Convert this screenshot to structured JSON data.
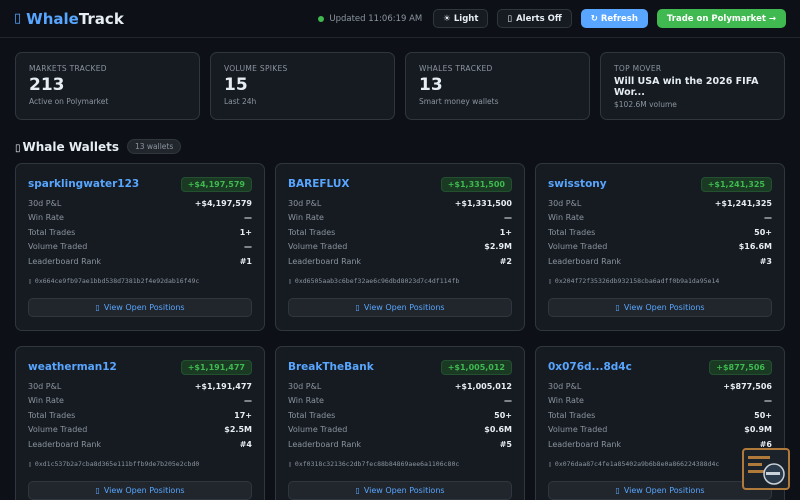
{
  "header": {
    "logo_icon": "tofu-box",
    "logo_whale": "Whale",
    "logo_track": "Track",
    "updated": "Updated 11:06:19 AM",
    "light_btn": "☀ Light",
    "alerts_btn": "Alerts Off",
    "refresh_btn": "↻ Refresh",
    "trade_btn": "Trade on Polymarket →"
  },
  "stats": [
    {
      "label": "MARKETS TRACKED",
      "value": "213",
      "sub": "Active on Polymarket"
    },
    {
      "label": "VOLUME SPIKES",
      "value": "15",
      "sub": "Last 24h"
    },
    {
      "label": "WHALES TRACKED",
      "value": "13",
      "sub": "Smart money wallets"
    },
    {
      "label": "TOP MOVER",
      "title": "Will USA win the 2026 FIFA Wor...",
      "sub": "$102.6M volume"
    }
  ],
  "section": {
    "title": "Whale Wallets",
    "count": "13 wallets"
  },
  "labels": {
    "pnl": "30d P&L",
    "win": "Win Rate",
    "trades": "Total Trades",
    "volume": "Volume Traded",
    "rank": "Leaderboard Rank",
    "positions": "View Open Positions"
  },
  "wallets": [
    {
      "name": "sparklingwater123",
      "badge": "+$4,197,579",
      "pnl": "+$4,197,579",
      "win": "—",
      "trades": "1+",
      "volume": "—",
      "rank": "#1",
      "addr": "0x664ce9fb97ae1bbd538d7381b2f4e92dab16f49c"
    },
    {
      "name": "BAREFLUX",
      "badge": "+$1,331,500",
      "pnl": "+$1,331,500",
      "win": "—",
      "trades": "1+",
      "volume": "$2.9M",
      "rank": "#2",
      "addr": "0xd6505aab3c6bef32ae6c96dbd8023d7c4df114fb"
    },
    {
      "name": "swisstony",
      "badge": "+$1,241,325",
      "pnl": "+$1,241,325",
      "win": "—",
      "trades": "50+",
      "volume": "$16.6M",
      "rank": "#3",
      "addr": "0x204f72f35326db932158cba6adff0b9a1da95e14"
    },
    {
      "name": "weatherman12",
      "badge": "+$1,191,477",
      "pnl": "+$1,191,477",
      "win": "—",
      "trades": "17+",
      "volume": "$2.5M",
      "rank": "#4",
      "addr": "0xd1c537b2a7cba8d365e111bffb9de7b205e2cbd0"
    },
    {
      "name": "BreakTheBank",
      "badge": "+$1,005,012",
      "pnl": "+$1,005,012",
      "win": "—",
      "trades": "50+",
      "volume": "$0.6M",
      "rank": "#5",
      "addr": "0xf0318c32136c2db7fec88b84869aee6a1106c80c"
    },
    {
      "name": "0x076d...8d4c",
      "badge": "+$877,506",
      "pnl": "+$877,506",
      "win": "—",
      "trades": "50+",
      "volume": "$0.9M",
      "rank": "#6",
      "addr": "0x076daa87c4fe1a85402a9b6b8e0a866224388d4c"
    }
  ],
  "colors": {
    "accent_blue": "#58a6ff",
    "profit_green": "#3fb950",
    "bg": "#0d1117",
    "card": "#161b22"
  }
}
